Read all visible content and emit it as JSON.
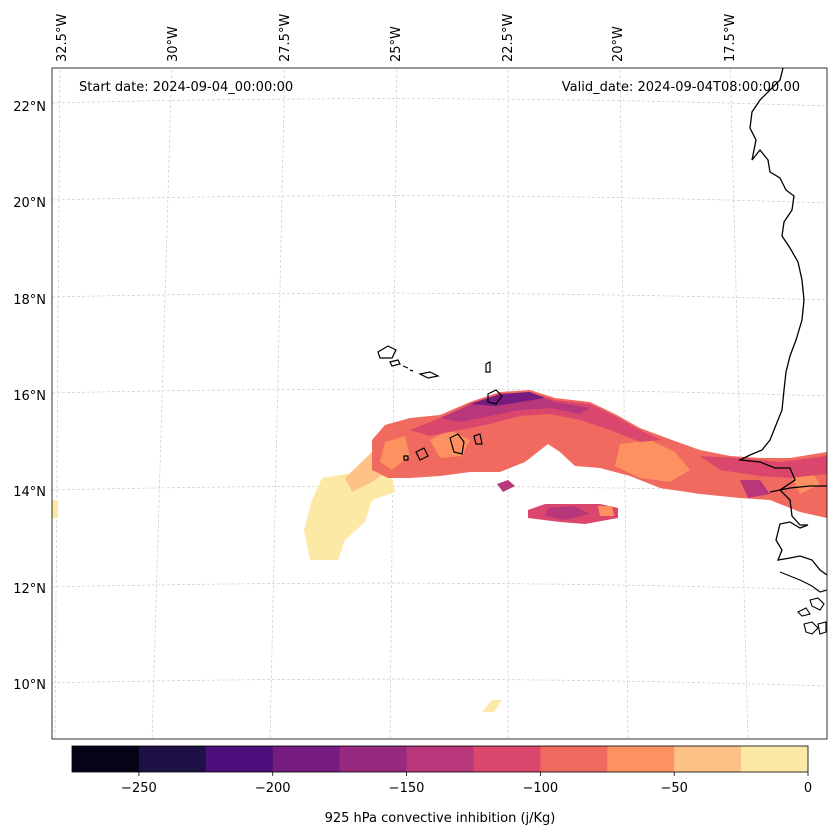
{
  "map": {
    "start_date": "Start date: 2024-09-04_00:00:00",
    "valid_date": "Valid_date: 2024-09-04T08:00:00.00",
    "lon_labels": [
      "32.5°W",
      "30°W",
      "27.5°W",
      "25°W",
      "22.5°W",
      "20°W",
      "17.5°W"
    ],
    "lat_labels": [
      "22°N",
      "20°N",
      "18°N",
      "16°N",
      "14°N",
      "12°N",
      "10°N"
    ],
    "land_color": "#000000",
    "gridline_color": "#cccccc"
  },
  "colorbar": {
    "label": "925 hPa convective inhibition (j/Kg)",
    "tick_labels": [
      "−250",
      "−200",
      "−150",
      "−100",
      "−50",
      "0"
    ],
    "levels": [
      -275,
      -250,
      -225,
      -200,
      -175,
      -150,
      -125,
      -100,
      -75,
      -50,
      -25,
      0
    ],
    "colors": [
      "#050416",
      "#1e1146",
      "#4d0f7b",
      "#761b80",
      "#972a7f",
      "#b8367a",
      "#db476c",
      "#f06a5f",
      "#fd9160",
      "#fec287",
      "#fde9a6"
    ]
  },
  "chart_data": {
    "type": "heatmap",
    "title": "",
    "variable": "925 hPa convective inhibition",
    "units": "j/Kg",
    "colorbar_range": [
      -275,
      0
    ],
    "colorbar_ticks": [
      -250,
      -200,
      -150,
      -100,
      -50,
      0
    ],
    "lon_ticks": [
      -32.5,
      -30,
      -27.5,
      -25,
      -22.5,
      -20,
      -17.5
    ],
    "lat_ticks": [
      22,
      20,
      18,
      16,
      14,
      12,
      10
    ],
    "x_extent_deg": [
      -33,
      -15.5
    ],
    "y_extent_deg": [
      8.8,
      22.5
    ]
  }
}
